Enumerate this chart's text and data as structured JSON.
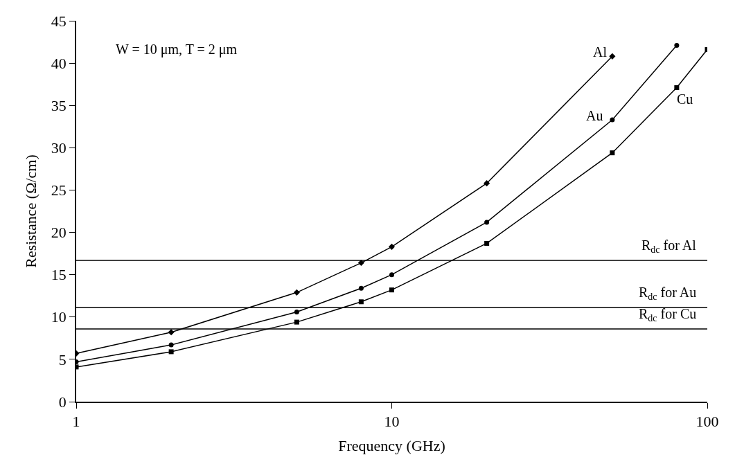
{
  "chart_data": {
    "type": "line",
    "xlabel": "Frequency (GHz)",
    "ylabel": "Resistance (Ω/cm)",
    "log": "x",
    "grid": false,
    "legend": false,
    "line_style": "solid",
    "xlim": [
      1,
      100
    ],
    "xticks": [
      1,
      10,
      100
    ],
    "ylim": [
      0,
      45
    ],
    "yticks": [
      0,
      5,
      10,
      15,
      20,
      25,
      30,
      35,
      40,
      45
    ],
    "series": [
      {
        "name": "Al",
        "color": "#000000",
        "marker": "diamond",
        "x": [
          1,
          2,
          5,
          8,
          10,
          20,
          50
        ],
        "values": [
          5.7,
          8.2,
          12.9,
          16.4,
          18.3,
          25.8,
          40.8
        ]
      },
      {
        "name": "Au",
        "color": "#000000",
        "marker": "circle",
        "x": [
          1,
          2,
          5,
          8,
          10,
          20,
          50,
          80
        ],
        "values": [
          4.7,
          6.7,
          10.6,
          13.4,
          15.0,
          21.2,
          33.3,
          42.1
        ]
      },
      {
        "name": "Cu",
        "color": "#000000",
        "marker": "square",
        "x": [
          1,
          2,
          5,
          8,
          10,
          20,
          50,
          80,
          100
        ],
        "values": [
          4.1,
          5.9,
          9.4,
          11.8,
          13.2,
          18.7,
          29.4,
          37.1,
          41.6
        ]
      }
    ],
    "ref_lines": [
      {
        "axis": "y",
        "value": 16.7,
        "label": "R$_{dc}$ for Al",
        "color": "#000000"
      },
      {
        "axis": "y",
        "value": 11.1,
        "label": "R$_{dc}$ for Au",
        "color": "#000000"
      },
      {
        "axis": "y",
        "value": 8.6,
        "label": "R$_{dc}$ for Cu",
        "color": "#000000"
      }
    ],
    "annotations": [
      "W = 10 μm, T = 2 μm"
    ]
  }
}
